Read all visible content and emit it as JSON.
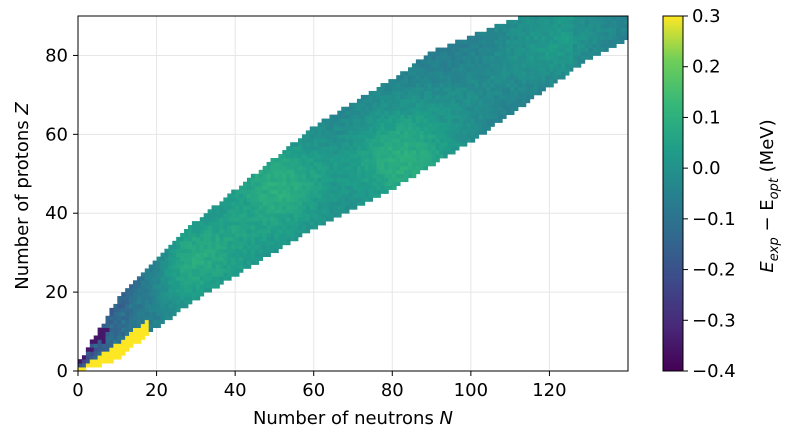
{
  "chart_data": {
    "type": "heatmap",
    "title": "",
    "xlabel": {
      "main": "Number of neutrons ",
      "var": "N"
    },
    "ylabel": {
      "main": "Number of protons ",
      "var": "Z"
    },
    "xlim": [
      0,
      140
    ],
    "ylim": [
      0,
      90
    ],
    "xticks": [
      0,
      20,
      40,
      60,
      80,
      100,
      120
    ],
    "yticks": [
      0,
      20,
      40,
      60,
      80
    ],
    "grid": true,
    "colormap": "viridis",
    "colorbar": {
      "range": [
        -0.4,
        0.3
      ],
      "ticks": [
        0.3,
        0.2,
        0.1,
        0.0,
        -0.1,
        -0.2,
        -0.3,
        -0.4
      ],
      "tick_labels": [
        "0.3",
        "0.2",
        "0.1",
        "0.0",
        "−0.1",
        "−0.2",
        "−0.3",
        "−0.4"
      ],
      "label": {
        "lead": "E",
        "sub1": "exp",
        "mid": " − E",
        "sub2": "opt",
        "tail": " (MeV)"
      }
    },
    "band": {
      "description_points_N": [
        0,
        5,
        10,
        20,
        30,
        40,
        50,
        60,
        70,
        80,
        90,
        100,
        110,
        120,
        130,
        140
      ],
      "Z_upper": [
        1,
        9,
        17,
        27,
        37,
        45,
        53,
        61,
        67,
        73,
        80,
        84,
        88,
        90,
        90,
        90
      ],
      "Z_lower": [
        0,
        1,
        3,
        11,
        18,
        24,
        30,
        36,
        41,
        46,
        52,
        58,
        65,
        72,
        79,
        84
      ]
    },
    "hotspots": [
      {
        "N": 50,
        "Z": 50,
        "value": 0.12
      },
      {
        "N": 82,
        "Z": 50,
        "value": 0.08
      },
      {
        "N": 28,
        "Z": 28,
        "value": 0.1
      },
      {
        "N": 126,
        "Z": 82,
        "value": 0.0
      }
    ],
    "low_N_region": {
      "value_yellow": 0.3,
      "value_dark": -0.35
    }
  }
}
